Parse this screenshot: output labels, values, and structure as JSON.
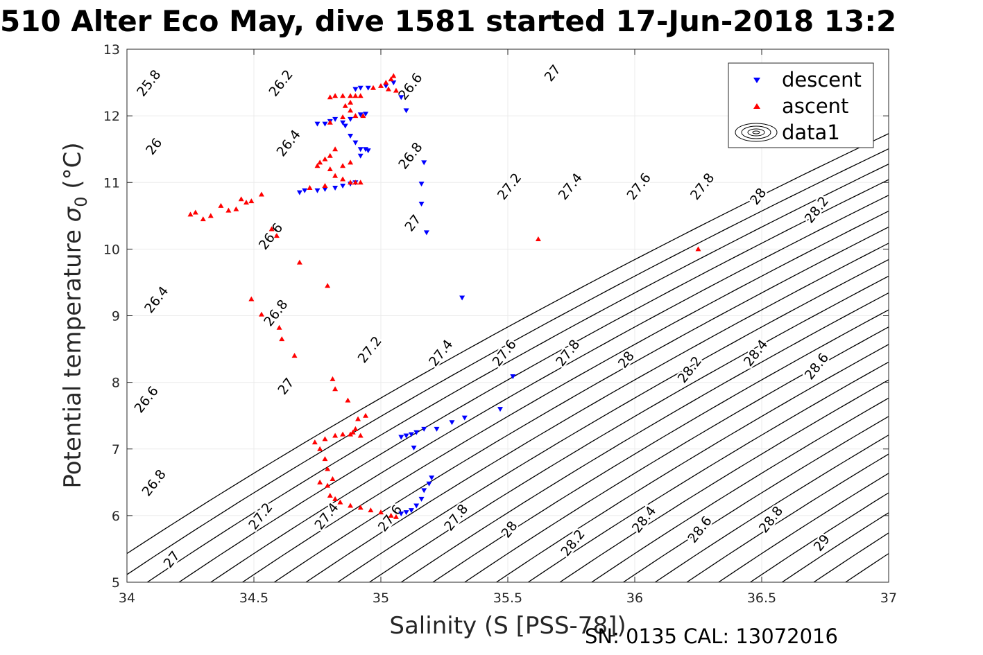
{
  "title": "510 Alter Eco May, dive 1581 started 17-Jun-2018 13:2",
  "footer": "SN: 0135  CAL: 13072016",
  "chart_data": {
    "type": "scatter",
    "xlabel": "Salinity (S [PSS-78])",
    "ylabel_main": "Potential temperature ",
    "ylabel_sigma": "σ",
    "ylabel_sub": "0",
    "ylabel_unit": " (°C)",
    "xlim": [
      34,
      37
    ],
    "ylim": [
      5,
      13
    ],
    "x_ticks": [
      "34",
      "34.5",
      "35",
      "35.5",
      "36",
      "36.5",
      "37"
    ],
    "y_ticks": [
      "5",
      "6",
      "7",
      "8",
      "9",
      "10",
      "11",
      "12",
      "13"
    ],
    "grid": true,
    "legend_position": "top-right",
    "legend": [
      {
        "label": "descent",
        "marker": "triangle-down",
        "color": "#0000ff"
      },
      {
        "label": "ascent",
        "marker": "triangle-up",
        "color": "#ff0000"
      },
      {
        "label": "data1",
        "marker": "contour",
        "color": "#000000"
      }
    ],
    "contour_labels": [
      {
        "text": "25.8",
        "x": 34.1,
        "y": 12.45
      },
      {
        "text": "26.2",
        "x": 34.62,
        "y": 12.45
      },
      {
        "text": "26.6",
        "x": 35.13,
        "y": 12.4
      },
      {
        "text": "27",
        "x": 35.69,
        "y": 12.6
      },
      {
        "text": "26",
        "x": 34.12,
        "y": 11.5
      },
      {
        "text": "26.4",
        "x": 34.65,
        "y": 11.55
      },
      {
        "text": "26.8",
        "x": 35.13,
        "y": 11.36
      },
      {
        "text": "27.2",
        "x": 35.52,
        "y": 10.9
      },
      {
        "text": "27.4",
        "x": 35.76,
        "y": 10.9
      },
      {
        "text": "27.6",
        "x": 36.03,
        "y": 10.9
      },
      {
        "text": "27.8",
        "x": 36.28,
        "y": 10.9
      },
      {
        "text": "28",
        "x": 36.5,
        "y": 10.75
      },
      {
        "text": "28.2",
        "x": 36.73,
        "y": 10.55
      },
      {
        "text": "26.6",
        "x": 34.58,
        "y": 10.15
      },
      {
        "text": "27",
        "x": 35.14,
        "y": 10.35
      },
      {
        "text": "26.4",
        "x": 34.13,
        "y": 9.2
      },
      {
        "text": "26.8",
        "x": 34.6,
        "y": 9.0
      },
      {
        "text": "27.2",
        "x": 34.97,
        "y": 8.45
      },
      {
        "text": "27.4",
        "x": 35.25,
        "y": 8.4
      },
      {
        "text": "27.6",
        "x": 35.5,
        "y": 8.4
      },
      {
        "text": "27.8",
        "x": 35.75,
        "y": 8.4
      },
      {
        "text": "28",
        "x": 35.98,
        "y": 8.3
      },
      {
        "text": "28.2",
        "x": 36.23,
        "y": 8.15
      },
      {
        "text": "28.4",
        "x": 36.49,
        "y": 8.4
      },
      {
        "text": "28.6",
        "x": 36.73,
        "y": 8.2
      },
      {
        "text": "26.6",
        "x": 34.09,
        "y": 7.7
      },
      {
        "text": "27",
        "x": 34.64,
        "y": 7.9
      },
      {
        "text": "26.8",
        "x": 34.12,
        "y": 6.45
      },
      {
        "text": "27.2",
        "x": 34.54,
        "y": 5.95
      },
      {
        "text": "27.4",
        "x": 34.8,
        "y": 5.95
      },
      {
        "text": "27.6",
        "x": 35.05,
        "y": 5.92
      },
      {
        "text": "27.8",
        "x": 35.31,
        "y": 5.93
      },
      {
        "text": "28",
        "x": 35.52,
        "y": 5.75
      },
      {
        "text": "28.2",
        "x": 35.77,
        "y": 5.55
      },
      {
        "text": "28.4",
        "x": 36.05,
        "y": 5.9
      },
      {
        "text": "28.6",
        "x": 36.27,
        "y": 5.75
      },
      {
        "text": "28.8",
        "x": 36.55,
        "y": 5.9
      },
      {
        "text": "29",
        "x": 36.75,
        "y": 5.55
      },
      {
        "text": "27",
        "x": 34.19,
        "y": 5.3
      }
    ],
    "series": [
      {
        "name": "descent",
        "color": "#0000ff",
        "points": [
          [
            35.08,
            12.28
          ],
          [
            35.1,
            12.08
          ],
          [
            35.05,
            12.5
          ],
          [
            35.02,
            12.45
          ],
          [
            34.95,
            12.42
          ],
          [
            34.92,
            12.42
          ],
          [
            34.9,
            12.4
          ],
          [
            34.94,
            12.03
          ],
          [
            34.92,
            12.02
          ],
          [
            34.88,
            11.95
          ],
          [
            34.85,
            11.9
          ],
          [
            34.82,
            11.95
          ],
          [
            34.8,
            11.92
          ],
          [
            34.78,
            11.88
          ],
          [
            34.75,
            11.88
          ],
          [
            34.86,
            11.85
          ],
          [
            34.88,
            11.7
          ],
          [
            34.9,
            11.6
          ],
          [
            34.92,
            11.5
          ],
          [
            34.94,
            11.5
          ],
          [
            34.92,
            11.4
          ],
          [
            34.95,
            11.48
          ],
          [
            34.9,
            11.0
          ],
          [
            34.88,
            10.98
          ],
          [
            34.85,
            10.95
          ],
          [
            34.82,
            10.92
          ],
          [
            34.78,
            10.9
          ],
          [
            34.75,
            10.88
          ],
          [
            34.7,
            10.88
          ],
          [
            34.68,
            10.85
          ],
          [
            35.17,
            11.3
          ],
          [
            35.16,
            10.98
          ],
          [
            35.16,
            10.68
          ],
          [
            35.18,
            10.25
          ],
          [
            35.32,
            9.27
          ],
          [
            35.52,
            8.09
          ],
          [
            35.47,
            7.6
          ],
          [
            35.33,
            7.47
          ],
          [
            35.28,
            7.4
          ],
          [
            35.22,
            7.3
          ],
          [
            35.17,
            7.3
          ],
          [
            35.14,
            7.25
          ],
          [
            35.12,
            7.22
          ],
          [
            35.1,
            7.2
          ],
          [
            35.08,
            7.18
          ],
          [
            35.13,
            7.02
          ],
          [
            35.2,
            6.57
          ],
          [
            35.19,
            6.48
          ],
          [
            35.17,
            6.38
          ],
          [
            35.16,
            6.25
          ],
          [
            35.14,
            6.15
          ],
          [
            35.12,
            6.08
          ],
          [
            35.1,
            6.05
          ],
          [
            35.08,
            6.03
          ]
        ]
      },
      {
        "name": "ascent",
        "color": "#ff0000",
        "points": [
          [
            35.05,
            12.6
          ],
          [
            35.04,
            12.55
          ],
          [
            35.02,
            12.5
          ],
          [
            35.0,
            12.45
          ],
          [
            34.97,
            12.42
          ],
          [
            35.06,
            12.38
          ],
          [
            35.03,
            12.4
          ],
          [
            34.88,
            12.3
          ],
          [
            34.85,
            12.3
          ],
          [
            34.82,
            12.3
          ],
          [
            34.8,
            12.28
          ],
          [
            34.9,
            12.3
          ],
          [
            34.92,
            12.3
          ],
          [
            34.88,
            12.2
          ],
          [
            34.86,
            12.15
          ],
          [
            34.88,
            12.08
          ],
          [
            34.9,
            12.0
          ],
          [
            34.93,
            12.0
          ],
          [
            34.85,
            11.98
          ],
          [
            34.8,
            11.9
          ],
          [
            34.82,
            11.5
          ],
          [
            34.8,
            11.4
          ],
          [
            34.78,
            11.35
          ],
          [
            34.76,
            11.3
          ],
          [
            34.75,
            11.25
          ],
          [
            34.8,
            11.2
          ],
          [
            34.85,
            11.25
          ],
          [
            34.88,
            11.3
          ],
          [
            34.82,
            11.1
          ],
          [
            34.85,
            11.05
          ],
          [
            34.88,
            11.0
          ],
          [
            34.9,
            11.0
          ],
          [
            34.92,
            11.0
          ],
          [
            34.78,
            10.95
          ],
          [
            34.72,
            10.92
          ],
          [
            34.25,
            10.52
          ],
          [
            34.27,
            10.55
          ],
          [
            34.3,
            10.45
          ],
          [
            34.33,
            10.5
          ],
          [
            34.37,
            10.65
          ],
          [
            34.4,
            10.58
          ],
          [
            34.43,
            10.6
          ],
          [
            34.45,
            10.75
          ],
          [
            34.47,
            10.7
          ],
          [
            34.49,
            10.72
          ],
          [
            34.53,
            10.82
          ],
          [
            34.57,
            10.3
          ],
          [
            34.59,
            10.2
          ],
          [
            34.68,
            9.8
          ],
          [
            34.79,
            9.45
          ],
          [
            34.49,
            9.25
          ],
          [
            34.53,
            9.02
          ],
          [
            34.6,
            8.82
          ],
          [
            34.61,
            8.65
          ],
          [
            34.66,
            8.4
          ],
          [
            34.81,
            8.05
          ],
          [
            34.82,
            7.9
          ],
          [
            34.87,
            7.73
          ],
          [
            34.94,
            7.5
          ],
          [
            34.91,
            7.45
          ],
          [
            34.9,
            7.3
          ],
          [
            34.89,
            7.25
          ],
          [
            34.92,
            7.2
          ],
          [
            34.88,
            7.22
          ],
          [
            34.85,
            7.22
          ],
          [
            34.82,
            7.2
          ],
          [
            34.78,
            7.15
          ],
          [
            34.74,
            7.1
          ],
          [
            34.76,
            7.0
          ],
          [
            34.78,
            6.85
          ],
          [
            34.79,
            6.7
          ],
          [
            34.81,
            6.55
          ],
          [
            34.76,
            6.5
          ],
          [
            34.79,
            6.45
          ],
          [
            34.8,
            6.3
          ],
          [
            34.82,
            6.25
          ],
          [
            34.84,
            6.2
          ],
          [
            34.88,
            6.15
          ],
          [
            34.92,
            6.12
          ],
          [
            34.96,
            6.08
          ],
          [
            35.0,
            6.05
          ],
          [
            35.04,
            6.0
          ],
          [
            35.06,
            5.98
          ],
          [
            35.62,
            10.15
          ],
          [
            36.25,
            10.0
          ]
        ]
      }
    ]
  }
}
